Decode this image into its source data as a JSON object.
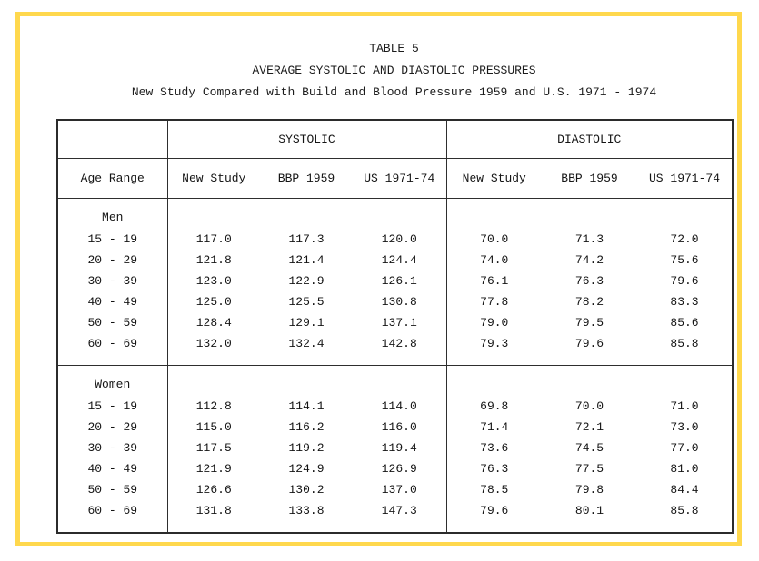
{
  "page": {
    "frame_color": "#ffd84d",
    "background_color": "#ffffff",
    "ink_color": "#161616"
  },
  "title": {
    "line1": "TABLE 5",
    "line2": "AVERAGE SYSTOLIC AND DIASTOLIC PRESSURES",
    "line3": "New Study Compared with Build and Blood Pressure 1959 and U.S. 1971 - 1974"
  },
  "table": {
    "group_headers": [
      "SYSTOLIC",
      "DIASTOLIC"
    ],
    "column_headers": [
      "Age Range",
      "New Study",
      "BBP 1959",
      "US 1971-74",
      "New Study",
      "BBP 1959",
      "US 1971-74"
    ],
    "sections": [
      {
        "label": "Men",
        "rows": [
          {
            "age_range": "15 - 19",
            "values": [
              "117.0",
              "117.3",
              "120.0",
              "70.0",
              "71.3",
              "72.0"
            ]
          },
          {
            "age_range": "20 - 29",
            "values": [
              "121.8",
              "121.4",
              "124.4",
              "74.0",
              "74.2",
              "75.6"
            ]
          },
          {
            "age_range": "30 - 39",
            "values": [
              "123.0",
              "122.9",
              "126.1",
              "76.1",
              "76.3",
              "79.6"
            ]
          },
          {
            "age_range": "40 - 49",
            "values": [
              "125.0",
              "125.5",
              "130.8",
              "77.8",
              "78.2",
              "83.3"
            ]
          },
          {
            "age_range": "50 - 59",
            "values": [
              "128.4",
              "129.1",
              "137.1",
              "79.0",
              "79.5",
              "85.6"
            ]
          },
          {
            "age_range": "60 - 69",
            "values": [
              "132.0",
              "132.4",
              "142.8",
              "79.3",
              "79.6",
              "85.8"
            ]
          }
        ]
      },
      {
        "label": "Women",
        "rows": [
          {
            "age_range": "15 - 19",
            "values": [
              "112.8",
              "114.1",
              "114.0",
              "69.8",
              "70.0",
              "71.0"
            ]
          },
          {
            "age_range": "20 - 29",
            "values": [
              "115.0",
              "116.2",
              "116.0",
              "71.4",
              "72.1",
              "73.0"
            ]
          },
          {
            "age_range": "30 - 39",
            "values": [
              "117.5",
              "119.2",
              "119.4",
              "73.6",
              "74.5",
              "77.0"
            ]
          },
          {
            "age_range": "40 - 49",
            "values": [
              "121.9",
              "124.9",
              "126.9",
              "76.3",
              "77.5",
              "81.0"
            ]
          },
          {
            "age_range": "50 - 59",
            "values": [
              "126.6",
              "130.2",
              "137.0",
              "78.5",
              "79.8",
              "84.4"
            ]
          },
          {
            "age_range": "60 - 69",
            "values": [
              "131.8",
              "133.8",
              "147.3",
              "79.6",
              "80.1",
              "85.8"
            ]
          }
        ]
      }
    ]
  }
}
